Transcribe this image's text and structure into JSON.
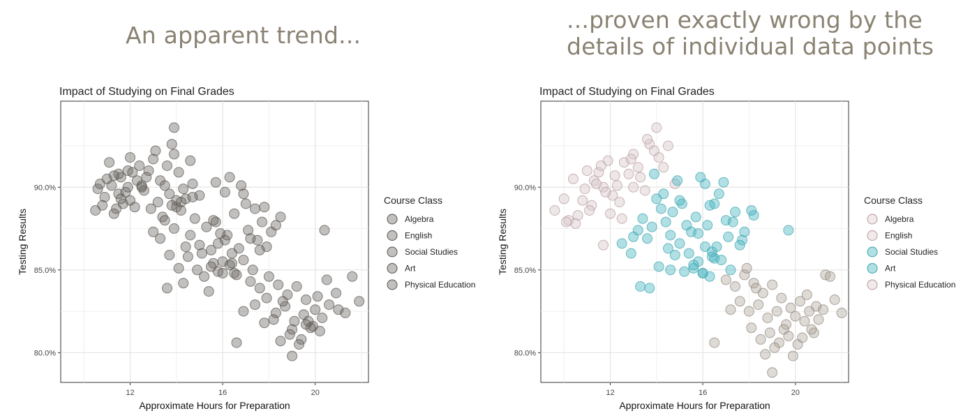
{
  "captions": {
    "left": "An apparent trend...",
    "right_line1": "...proven exactly wrong by the",
    "right_line2": "details of individual data points"
  },
  "colors": {
    "neutral": "#6e6a64",
    "teal": "#4fb8c4",
    "taupe": "#a89f94",
    "pink_edge": "#b8969a",
    "grid": "#e4e4e4"
  },
  "chart_data": [
    {
      "type": "scatter",
      "title": "Impact of Studying on Final Grades",
      "xlabel": "Approximate Hours for Preparation",
      "ylabel": "Testing Results",
      "xlim": [
        9,
        22.3
      ],
      "ylim": [
        78.2,
        95.2
      ],
      "xticks": [
        12,
        16,
        20
      ],
      "yticks": [
        80,
        85,
        90
      ],
      "ytick_labels": [
        "80.0%",
        "85.0%",
        "90.0%"
      ],
      "legend_title": "Course Class",
      "legend": [
        "Algebra",
        "English",
        "Social Studies",
        "Art",
        "Physical Education"
      ],
      "legend_position": "right",
      "coloring": "uniform grey",
      "series": [
        {
          "name": "Algebra",
          "x": [
            11.2,
            10.9,
            11.6,
            12.0,
            11.4,
            10.6,
            11.9,
            12.3,
            10.8,
            11.5,
            12.1,
            11.0,
            11.7,
            12.4,
            11.3,
            10.7,
            11.8,
            12.2,
            11.1,
            11.5,
            11.9,
            10.5,
            12.0,
            11.6,
            11.3,
            12.5
          ],
          "y": [
            90.1,
            89.4,
            90.6,
            89.2,
            88.7,
            89.9,
            91.0,
            90.4,
            88.9,
            89.6,
            90.9,
            90.5,
            89.0,
            91.3,
            88.4,
            90.2,
            89.7,
            88.8,
            91.5,
            90.8,
            90.0,
            88.6,
            91.8,
            89.3,
            90.7,
            90.1
          ]
        },
        {
          "name": "English",
          "x": [
            12.8,
            13.3,
            13.7,
            14.1,
            12.6,
            13.0,
            13.5,
            13.9,
            14.4,
            12.9,
            13.2,
            14.7,
            13.6,
            12.7,
            14.0,
            13.4,
            13.8,
            14.3,
            15.0,
            13.1,
            12.5,
            14.6,
            13.9,
            14.2
          ],
          "y": [
            91.0,
            90.4,
            89.6,
            90.9,
            89.8,
            91.7,
            90.1,
            92.0,
            89.3,
            88.7,
            89.1,
            90.2,
            91.3,
            90.6,
            88.8,
            88.2,
            92.6,
            89.9,
            89.5,
            92.2,
            90.0,
            91.6,
            93.6,
            89.1
          ]
        },
        {
          "name": "Social Studies",
          "x": [
            13.5,
            13.9,
            14.2,
            14.6,
            15.0,
            13.3,
            14.0,
            14.8,
            15.3,
            13.7,
            14.4,
            15.1,
            15.6,
            13.0,
            14.1,
            14.9,
            15.5,
            16.0,
            13.8,
            14.5,
            15.2,
            15.8,
            16.3,
            14.3,
            15.7,
            16.5,
            14.7,
            13.6,
            15.4,
            16.1
          ],
          "y": [
            88.0,
            87.5,
            88.6,
            87.1,
            86.5,
            86.9,
            89.2,
            88.1,
            87.6,
            85.9,
            86.4,
            86.0,
            85.4,
            87.3,
            85.1,
            85.0,
            86.2,
            85.5,
            88.9,
            85.8,
            84.6,
            84.9,
            85.3,
            84.2,
            87.9,
            84.8,
            89.4,
            83.9,
            83.7,
            86.8
          ]
        },
        {
          "name": "Art",
          "x": [
            15.5,
            16.0,
            16.4,
            16.9,
            17.3,
            15.8,
            16.2,
            16.7,
            17.1,
            17.5,
            15.6,
            16.5,
            17.0,
            17.7,
            18.1,
            16.1,
            16.8,
            17.4,
            18.3,
            15.9,
            16.6,
            17.2,
            17.8,
            18.5,
            16.3,
            17.6,
            16.9,
            15.7,
            17.9,
            16.4
          ],
          "y": [
            85.2,
            84.8,
            86.0,
            85.6,
            85.0,
            86.6,
            87.1,
            86.3,
            87.4,
            86.8,
            88.0,
            88.4,
            89.0,
            87.9,
            87.3,
            89.7,
            90.1,
            88.7,
            87.7,
            87.2,
            84.7,
            86.9,
            88.8,
            88.2,
            90.6,
            86.2,
            89.6,
            90.3,
            86.4,
            85.4
          ]
        },
        {
          "name": "Physical Education",
          "x": [
            17.2,
            17.6,
            18.0,
            18.4,
            18.8,
            19.2,
            19.6,
            20.0,
            17.4,
            17.9,
            18.3,
            18.7,
            19.1,
            19.5,
            19.9,
            20.3,
            16.9,
            17.8,
            18.2,
            18.6,
            19.0,
            19.4,
            19.8,
            20.2,
            20.6,
            21.0,
            18.5,
            18.9,
            19.3,
            19.7,
            20.1,
            20.5,
            20.9,
            21.3,
            19.0,
            19.6,
            20.4,
            21.6,
            21.9,
            16.6
          ],
          "y": [
            84.3,
            83.9,
            84.6,
            84.1,
            83.5,
            84.0,
            83.2,
            82.6,
            82.9,
            83.3,
            82.4,
            82.8,
            81.9,
            82.3,
            81.6,
            82.1,
            82.5,
            81.8,
            82.0,
            83.1,
            81.4,
            80.8,
            81.5,
            81.3,
            82.9,
            82.6,
            80.7,
            81.1,
            80.5,
            81.9,
            83.4,
            84.4,
            83.6,
            82.4,
            79.8,
            81.7,
            87.4,
            84.6,
            83.1,
            80.6
          ]
        }
      ]
    },
    {
      "type": "scatter",
      "title": "Impact of Studying on Final Grades",
      "xlabel": "Approximate Hours for Preparation",
      "ylabel": "Testing Results",
      "xlim": [
        9,
        22.3
      ],
      "ylim": [
        78.2,
        95.2
      ],
      "xticks": [
        12,
        16,
        20
      ],
      "yticks": [
        80,
        85,
        90
      ],
      "ytick_labels": [
        "80.0%",
        "85.0%",
        "90.0%"
      ],
      "legend_title": "Course Class",
      "legend": [
        "Algebra",
        "English",
        "Social Studies",
        "Art",
        "Physical Education"
      ],
      "legend_position": "right",
      "coloring": "by course class",
      "series": [
        {
          "name": "Algebra",
          "x": [
            9.6,
            10.0,
            10.4,
            10.9,
            11.3,
            11.7,
            12.1,
            10.2,
            10.6,
            11.0,
            11.5,
            11.9,
            12.3,
            10.8,
            11.2,
            11.6,
            12.0,
            12.4,
            10.5,
            11.4,
            11.8,
            12.2,
            12.6,
            13.0,
            10.1,
            11.1,
            12.8,
            13.2,
            12.5,
            11.7
          ],
          "y": [
            88.6,
            89.3,
            90.5,
            89.9,
            90.4,
            90.0,
            89.5,
            88.0,
            88.3,
            91.0,
            90.9,
            91.6,
            90.1,
            89.2,
            88.9,
            91.3,
            88.4,
            89.1,
            87.8,
            90.2,
            89.7,
            90.7,
            91.5,
            92.0,
            87.9,
            88.6,
            90.8,
            91.2,
            88.1,
            86.5
          ]
        },
        {
          "name": "English",
          "x": [
            12.9,
            13.3,
            13.7,
            14.1,
            14.5,
            14.0,
            13.5,
            14.8,
            13.0,
            13.6,
            14.3,
            13.9
          ],
          "y": [
            91.7,
            90.6,
            92.6,
            91.8,
            92.5,
            93.6,
            89.8,
            90.2,
            90.0,
            92.9,
            91.2,
            92.2
          ]
        },
        {
          "name": "Social Studies",
          "x": [
            13.4,
            13.8,
            14.2,
            14.6,
            15.0,
            15.4,
            15.8,
            13.6,
            14.0,
            14.4,
            14.8,
            15.2,
            15.6,
            16.0,
            13.2,
            14.1,
            14.5,
            15.3,
            15.7,
            16.1,
            13.9,
            14.3,
            14.7,
            15.1,
            15.5,
            16.3,
            12.9,
            13.3,
            14.9,
            16.5,
            12.5,
            13.0,
            14.6,
            13.7,
            15.0
          ],
          "y": [
            88.1,
            87.6,
            88.7,
            87.1,
            86.6,
            86.0,
            85.5,
            86.9,
            89.3,
            87.9,
            85.9,
            84.9,
            85.1,
            84.8,
            87.4,
            85.2,
            86.3,
            87.7,
            88.2,
            86.4,
            90.8,
            89.6,
            88.5,
            89.0,
            87.3,
            84.6,
            86.0,
            84.0,
            90.4,
            85.7,
            86.6,
            87.0,
            85.0,
            83.9,
            89.2
          ]
        },
        {
          "name": "Art",
          "x": [
            15.6,
            16.0,
            16.4,
            16.8,
            17.2,
            15.8,
            16.2,
            16.6,
            17.0,
            17.4,
            17.8,
            18.2,
            16.1,
            16.5,
            16.9,
            17.3,
            17.7,
            18.1,
            16.3,
            16.7,
            17.1,
            15.9,
            16.4,
            17.6,
            19.7
          ],
          "y": [
            85.3,
            84.8,
            86.1,
            85.6,
            85.0,
            87.2,
            87.7,
            86.4,
            88.0,
            88.5,
            87.3,
            88.3,
            90.2,
            89.0,
            90.3,
            87.9,
            86.8,
            88.6,
            88.9,
            89.6,
            87.0,
            90.6,
            85.8,
            86.5,
            87.4
          ]
        },
        {
          "name": "Physical Education",
          "x": [
            17.0,
            17.4,
            17.8,
            18.2,
            18.6,
            19.0,
            19.4,
            19.8,
            20.2,
            20.6,
            21.0,
            17.6,
            18.0,
            18.4,
            18.8,
            19.2,
            19.6,
            20.0,
            20.4,
            20.8,
            21.2,
            17.2,
            18.1,
            18.5,
            18.9,
            19.3,
            19.7,
            20.1,
            20.5,
            20.9,
            21.3,
            21.7,
            22.0,
            18.7,
            19.1,
            19.5,
            19.9,
            20.3,
            16.5,
            17.9,
            19.0,
            21.5,
            20.7,
            18.3
          ],
          "y": [
            84.4,
            84.0,
            84.7,
            84.2,
            83.6,
            84.1,
            83.3,
            82.7,
            83.1,
            82.5,
            82.0,
            83.1,
            82.5,
            82.9,
            82.1,
            82.5,
            81.7,
            82.2,
            81.9,
            81.2,
            82.6,
            82.6,
            81.5,
            80.8,
            81.2,
            80.6,
            81.0,
            80.5,
            83.5,
            82.8,
            84.7,
            83.2,
            82.4,
            79.9,
            80.3,
            81.4,
            79.8,
            80.9,
            80.6,
            85.1,
            78.8,
            84.6,
            81.4,
            83.9
          ]
        }
      ]
    }
  ]
}
